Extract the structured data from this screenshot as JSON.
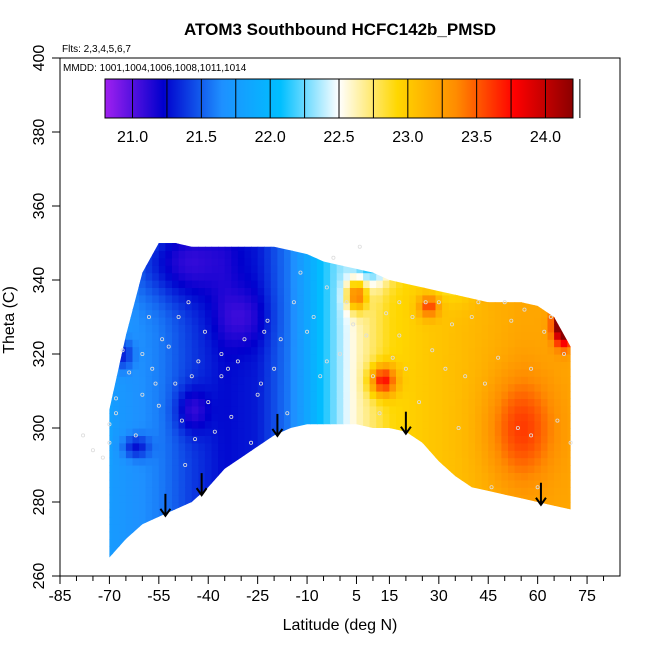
{
  "chart_data": {
    "type": "heatmap",
    "title": "ATOM3 Southbound HCFC142b_PMSD",
    "annotations": [
      "Flts: 2,3,4,5,6,7",
      "MMDD: 1001,1004,1006,1008,1011,1014"
    ],
    "xlabel": "Latitude (deg N)",
    "ylabel": "Theta (C)",
    "xlim": [
      -85,
      85
    ],
    "ylim": [
      260,
      400
    ],
    "x_ticks": [
      -85,
      -70,
      -55,
      -40,
      -25,
      -10,
      5,
      15,
      30,
      45,
      60,
      75
    ],
    "y_ticks": [
      260,
      280,
      300,
      320,
      340,
      360,
      380,
      400
    ],
    "colorbar": {
      "range": [
        20.8,
        24.2
      ],
      "ticks": [
        21.0,
        21.5,
        22.0,
        22.5,
        23.0,
        23.5,
        24.0
      ],
      "colors": [
        "#a020f0",
        "#0000cd",
        "#1e90ff",
        "#00bfff",
        "#ffffff",
        "#ffd700",
        "#ff8c00",
        "#ff0000",
        "#8b0000"
      ]
    },
    "arrows_x": [
      -53,
      -42,
      -19,
      20,
      61
    ],
    "region": {
      "lat": [
        -70,
        -65,
        -60,
        -55,
        -50,
        -45,
        -40,
        -35,
        -30,
        -25,
        -20,
        -15,
        -10,
        -5,
        0,
        5,
        10,
        15,
        20,
        25,
        30,
        35,
        40,
        45,
        50,
        55,
        60,
        65,
        70
      ],
      "top": [
        305,
        325,
        342,
        350,
        350,
        349,
        349,
        349,
        349,
        349,
        349,
        348,
        347,
        345,
        344,
        343,
        342,
        340,
        339,
        338,
        337,
        336,
        335,
        334,
        334,
        334,
        333,
        330,
        322
      ],
      "bottom": [
        265,
        270,
        274,
        276,
        278,
        280,
        284,
        289,
        292,
        295,
        298,
        300,
        301,
        301,
        301,
        301,
        300,
        300,
        299,
        296,
        291,
        287,
        284,
        283,
        282,
        281,
        280,
        279,
        278
      ]
    },
    "field": {
      "base": [
        [
          -85,
          21.8
        ],
        [
          -70,
          21.75
        ],
        [
          -55,
          21.6
        ],
        [
          -45,
          21.4
        ],
        [
          -35,
          21.25
        ],
        [
          -25,
          21.3
        ],
        [
          -15,
          21.6
        ],
        [
          -5,
          22.1
        ],
        [
          5,
          22.6
        ],
        [
          15,
          22.9
        ],
        [
          25,
          23.0
        ],
        [
          40,
          23.1
        ],
        [
          55,
          23.2
        ],
        [
          70,
          23.2
        ],
        [
          85,
          23.2
        ]
      ],
      "bumps": [
        {
          "lat": -50,
          "theta": 345,
          "amp": -0.35,
          "rlat": 14,
          "rth": 10
        },
        {
          "lat": -45,
          "theta": 305,
          "amp": -0.3,
          "rlat": 5,
          "rth": 6
        },
        {
          "lat": -30,
          "theta": 330,
          "amp": -0.2,
          "rlat": 8,
          "rth": 8
        },
        {
          "lat": 5,
          "theta": 336,
          "amp": 0.9,
          "rlat": 3,
          "rth": 4
        },
        {
          "lat": 13,
          "theta": 313,
          "amp": 0.9,
          "rlat": 4,
          "rth": 4
        },
        {
          "lat": 27,
          "theta": 333,
          "amp": 0.6,
          "rlat": 3,
          "rth": 3
        },
        {
          "lat": 68,
          "theta": 328,
          "amp": 1.6,
          "rlat": 3,
          "rth": 5
        },
        {
          "lat": 55,
          "theta": 300,
          "amp": 0.4,
          "rlat": 10,
          "rth": 14
        },
        {
          "lat": -66,
          "theta": 320,
          "amp": -0.4,
          "rlat": 3,
          "rth": 4
        },
        {
          "lat": -62,
          "theta": 295,
          "amp": -0.4,
          "rlat": 4,
          "rth": 3
        },
        {
          "lat": 35,
          "theta": 345,
          "amp": -0.5,
          "rlat": 8,
          "rth": 8
        },
        {
          "lat": 10,
          "theta": 345,
          "amp": -0.7,
          "rlat": 6,
          "rth": 6
        },
        {
          "lat": -78,
          "theta": 300,
          "amp": 0.35,
          "rlat": 6,
          "rth": 12
        },
        {
          "lat": 45,
          "theta": 340,
          "amp": 0.3,
          "rlat": 5,
          "rth": 4
        }
      ]
    },
    "points": [
      [
        -78,
        298
      ],
      [
        -75,
        294
      ],
      [
        -72,
        292
      ],
      [
        -70,
        296
      ],
      [
        -68,
        304
      ],
      [
        -66,
        321
      ],
      [
        -64,
        315
      ],
      [
        -62,
        298
      ],
      [
        -60,
        309
      ],
      [
        -58,
        330
      ],
      [
        -57,
        316
      ],
      [
        -56,
        312
      ],
      [
        -55,
        306
      ],
      [
        -54,
        324
      ],
      [
        -52,
        322
      ],
      [
        -50,
        312
      ],
      [
        -49,
        330
      ],
      [
        -48,
        302
      ],
      [
        -47,
        290
      ],
      [
        -45,
        314
      ],
      [
        -44,
        297
      ],
      [
        -43,
        318
      ],
      [
        -41,
        326
      ],
      [
        -40,
        307
      ],
      [
        -38,
        299
      ],
      [
        -36,
        314
      ],
      [
        -34,
        316
      ],
      [
        -33,
        303
      ],
      [
        -31,
        318
      ],
      [
        -29,
        324
      ],
      [
        -27,
        296
      ],
      [
        -25,
        309
      ],
      [
        -23,
        326
      ],
      [
        -22,
        329
      ],
      [
        -20,
        316
      ],
      [
        -18,
        324
      ],
      [
        -16,
        304
      ],
      [
        -14,
        334
      ],
      [
        -12,
        342
      ],
      [
        -10,
        326
      ],
      [
        -8,
        330
      ],
      [
        -6,
        314
      ],
      [
        -4,
        338
      ],
      [
        -2,
        346
      ],
      [
        0,
        320
      ],
      [
        2,
        334
      ],
      [
        4,
        328
      ],
      [
        6,
        349
      ],
      [
        8,
        325
      ],
      [
        10,
        314
      ],
      [
        12,
        304
      ],
      [
        14,
        331
      ],
      [
        16,
        319
      ],
      [
        18,
        334
      ],
      [
        20,
        316
      ],
      [
        22,
        330
      ],
      [
        24,
        307
      ],
      [
        26,
        334
      ],
      [
        28,
        321
      ],
      [
        30,
        334
      ],
      [
        32,
        316
      ],
      [
        34,
        328
      ],
      [
        36,
        300
      ],
      [
        40,
        330
      ],
      [
        42,
        334
      ],
      [
        44,
        312
      ],
      [
        46,
        284
      ],
      [
        48,
        319
      ],
      [
        50,
        334
      ],
      [
        52,
        329
      ],
      [
        54,
        300
      ],
      [
        56,
        332
      ],
      [
        58,
        316
      ],
      [
        60,
        284
      ],
      [
        62,
        326
      ],
      [
        64,
        330
      ],
      [
        66,
        302
      ],
      [
        68,
        320
      ],
      [
        70,
        296
      ],
      [
        -70,
        301
      ],
      [
        -68,
        308
      ],
      [
        -60,
        320
      ],
      [
        -46,
        334
      ],
      [
        -36,
        320
      ],
      [
        -24,
        312
      ],
      [
        -4,
        318
      ],
      [
        18,
        325
      ],
      [
        38,
        314
      ],
      [
        58,
        298
      ]
    ]
  }
}
